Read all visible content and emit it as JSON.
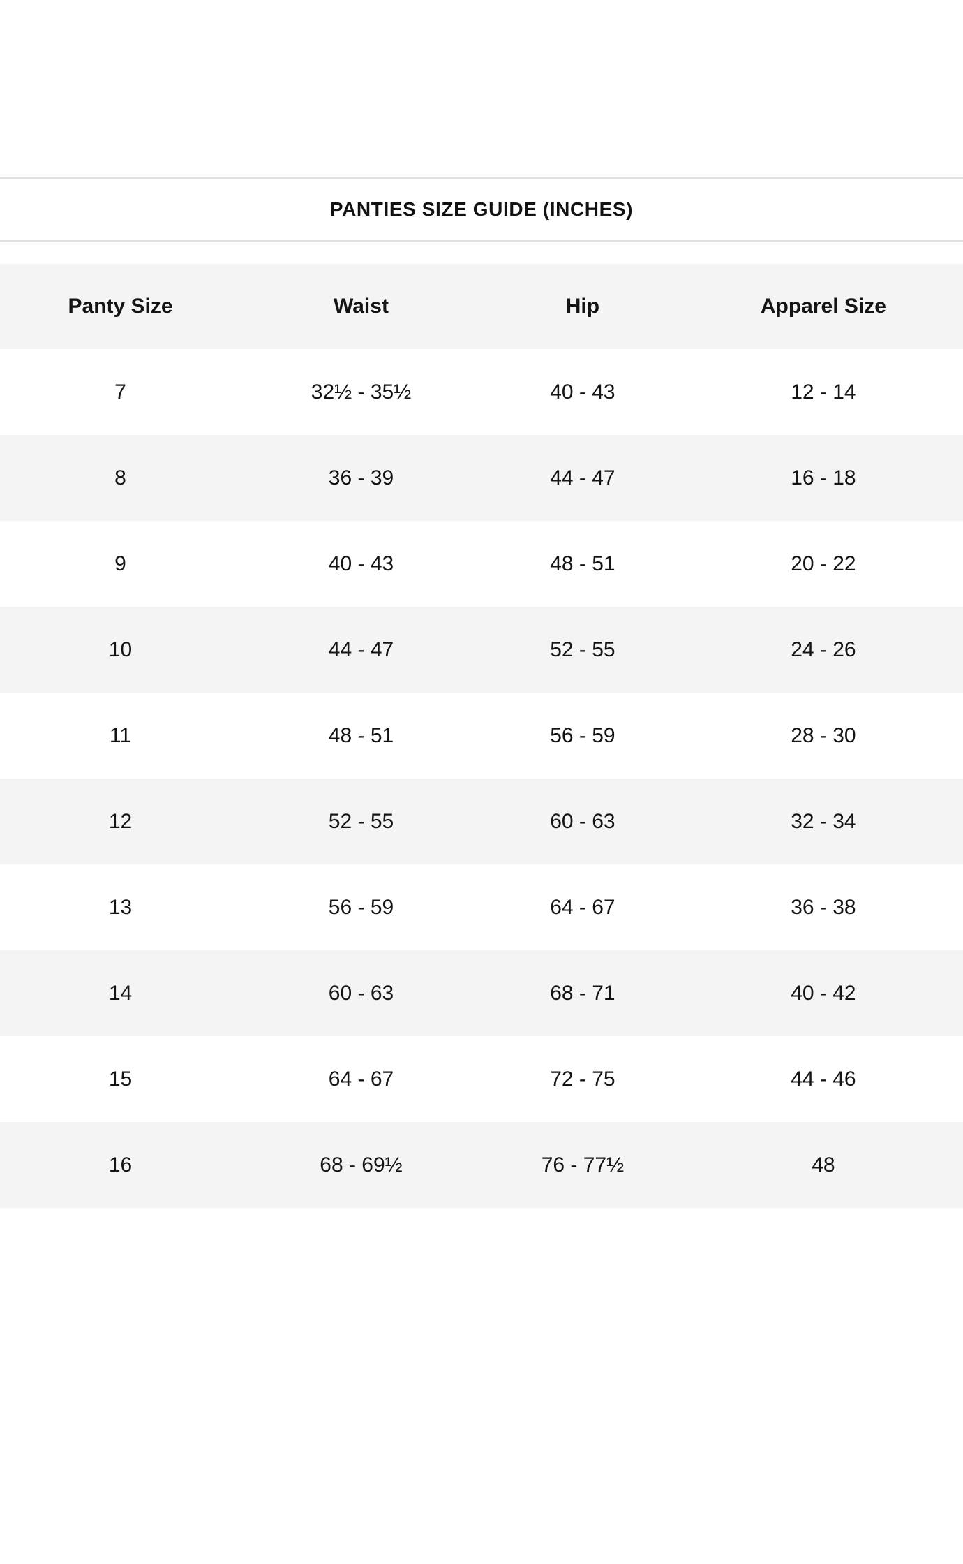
{
  "title": "PANTIES SIZE GUIDE (INCHES)",
  "table": {
    "columns": [
      "Panty Size",
      "Waist",
      "Hip",
      "Apparel Size"
    ],
    "rows": [
      [
        "7",
        "32½ - 35½",
        "40 - 43",
        "12 - 14"
      ],
      [
        "8",
        "36 - 39",
        "44 - 47",
        "16 - 18"
      ],
      [
        "9",
        "40 - 43",
        "48 - 51",
        "20 - 22"
      ],
      [
        "10",
        "44 - 47",
        "52 - 55",
        "24 - 26"
      ],
      [
        "11",
        "48 - 51",
        "56 - 59",
        "28 - 30"
      ],
      [
        "12",
        "52 - 55",
        "60 - 63",
        "32 - 34"
      ],
      [
        "13",
        "56 - 59",
        "64 - 67",
        "36 - 38"
      ],
      [
        "14",
        "60 - 63",
        "68 - 71",
        "40 - 42"
      ],
      [
        "15",
        "64 - 67",
        "72 - 75",
        "44 - 46"
      ],
      [
        "16",
        "68 - 69½",
        "76 - 77½",
        "48"
      ]
    ]
  },
  "colors": {
    "stripe": "#f4f4f4",
    "divider": "#e0e0e0",
    "text": "#141414"
  }
}
